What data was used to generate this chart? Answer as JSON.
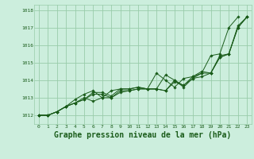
{
  "bg_color": "#cceedd",
  "grid_color": "#99ccaa",
  "line_color": "#1a5c1a",
  "xlabel": "Graphe pression niveau de la mer (hPa)",
  "xlabel_fontsize": 7,
  "ylim": [
    1011.5,
    1018.3
  ],
  "xlim": [
    -0.5,
    23.5
  ],
  "yticks": [
    1012,
    1013,
    1014,
    1015,
    1016,
    1017,
    1018
  ],
  "xticks": [
    0,
    1,
    2,
    3,
    4,
    5,
    6,
    7,
    8,
    9,
    10,
    11,
    12,
    13,
    14,
    15,
    16,
    17,
    18,
    19,
    20,
    21,
    22,
    23
  ],
  "xtick_labels": [
    "0",
    "1",
    "2",
    "3",
    "4",
    "5",
    "6",
    "7",
    "8",
    "9",
    "10",
    "11",
    "12",
    "13",
    "14",
    "15",
    "16",
    "17",
    "18",
    "19",
    "20",
    "21",
    "22",
    "23"
  ],
  "series": [
    [
      1012.0,
      1012.0,
      1012.2,
      1012.5,
      1012.7,
      1012.9,
      1013.3,
      1013.3,
      1013.1,
      1013.5,
      1013.5,
      1013.6,
      1013.5,
      1013.5,
      1014.3,
      1014.0,
      1013.7,
      1014.2,
      1014.5,
      1014.4,
      1015.3,
      1015.5,
      1017.1,
      1017.6
    ],
    [
      1012.0,
      1012.0,
      1012.2,
      1012.5,
      1012.7,
      1013.0,
      1012.8,
      1013.0,
      1013.0,
      1013.4,
      1013.4,
      1013.5,
      1013.5,
      1013.5,
      1013.4,
      1014.0,
      1013.6,
      1014.1,
      1014.2,
      1014.4,
      1015.4,
      1015.5,
      1017.0,
      1017.6
    ],
    [
      1012.0,
      1012.0,
      1012.2,
      1012.5,
      1012.7,
      1012.9,
      1013.2,
      1013.2,
      1013.0,
      1013.3,
      1013.4,
      1013.5,
      1013.5,
      1013.5,
      1013.4,
      1013.9,
      1013.7,
      1014.1,
      1014.4,
      1014.4,
      1015.3,
      1015.5,
      1017.0,
      1017.6
    ],
    [
      1012.0,
      1012.0,
      1012.2,
      1012.5,
      1012.9,
      1013.2,
      1013.4,
      1013.0,
      1013.4,
      1013.5,
      1013.5,
      1013.6,
      1013.5,
      1014.4,
      1014.0,
      1013.6,
      1014.1,
      1014.2,
      1014.4,
      1015.4,
      1015.5,
      1017.0,
      1017.6,
      null
    ]
  ]
}
